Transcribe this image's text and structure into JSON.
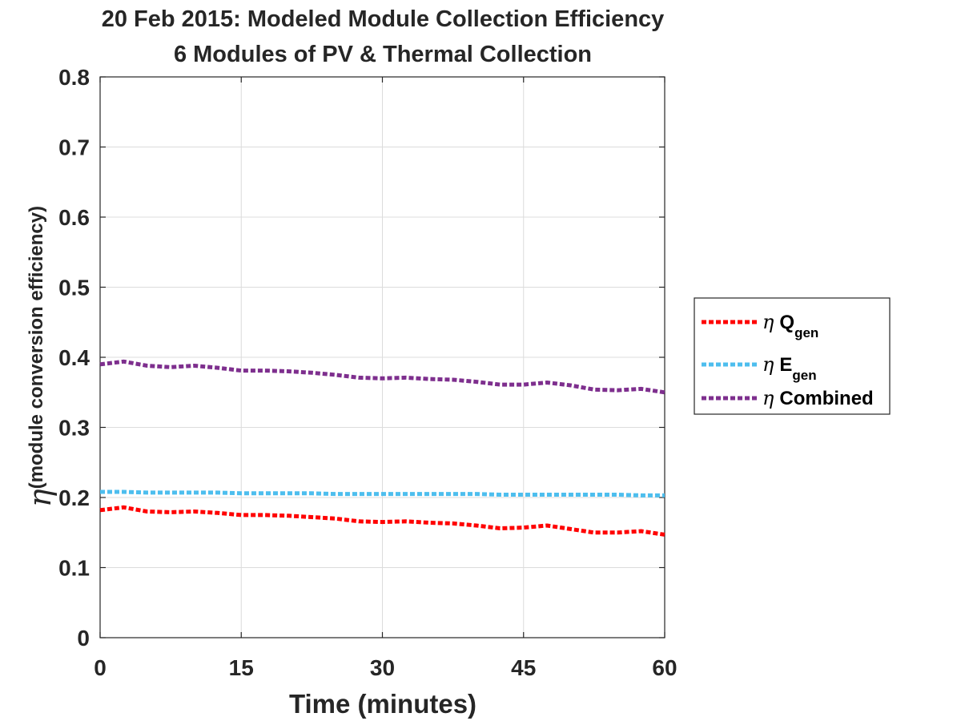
{
  "chart_data": {
    "type": "line",
    "title": [
      "20 Feb 2015: Modeled Module Collection Efficiency",
      "6 Modules of PV & Thermal Collection"
    ],
    "xlabel": "Time (minutes)",
    "ylabel": {
      "symbol": "η",
      "subscript": "(module conversion efficiency)"
    },
    "xlim": [
      0,
      60
    ],
    "ylim": [
      0,
      0.8
    ],
    "xticks": [
      0,
      15,
      30,
      45,
      60
    ],
    "xtick_labels": [
      "0",
      "15",
      "30",
      "45",
      "60"
    ],
    "yticks": [
      0,
      0.1,
      0.2,
      0.3,
      0.4,
      0.5,
      0.6,
      0.7,
      0.8
    ],
    "ytick_labels": [
      "0",
      "0.1",
      "0.2",
      "0.3",
      "0.4",
      "0.5",
      "0.6",
      "0.7",
      "0.8"
    ],
    "grid": true,
    "legend_position": "outside-right",
    "x": [
      0,
      2.5,
      5,
      7.5,
      10,
      12.5,
      15,
      17.5,
      20,
      22.5,
      25,
      27.5,
      30,
      32.5,
      35,
      37.5,
      40,
      42.5,
      45,
      47.5,
      50,
      52.5,
      55,
      57.5,
      60
    ],
    "series": [
      {
        "legend_symbol": "η",
        "legend_main": "Q",
        "legend_sub": "gen",
        "color": "#ff0000",
        "values": [
          0.182,
          0.186,
          0.18,
          0.179,
          0.18,
          0.178,
          0.175,
          0.175,
          0.174,
          0.172,
          0.17,
          0.166,
          0.165,
          0.166,
          0.164,
          0.163,
          0.16,
          0.156,
          0.157,
          0.16,
          0.155,
          0.15,
          0.15,
          0.152,
          0.147
        ]
      },
      {
        "legend_symbol": "η",
        "legend_main": "E",
        "legend_sub": "gen",
        "color": "#4dbeee",
        "values": [
          0.208,
          0.208,
          0.207,
          0.207,
          0.207,
          0.207,
          0.206,
          0.206,
          0.206,
          0.206,
          0.205,
          0.205,
          0.205,
          0.205,
          0.205,
          0.205,
          0.205,
          0.204,
          0.204,
          0.204,
          0.204,
          0.204,
          0.204,
          0.203,
          0.203
        ]
      },
      {
        "legend_symbol": "η",
        "legend_main": "Combined",
        "legend_sub": "",
        "color": "#7e2f8e",
        "values": [
          0.39,
          0.394,
          0.388,
          0.386,
          0.388,
          0.385,
          0.381,
          0.381,
          0.38,
          0.378,
          0.375,
          0.371,
          0.37,
          0.371,
          0.369,
          0.368,
          0.365,
          0.361,
          0.361,
          0.364,
          0.36,
          0.354,
          0.353,
          0.355,
          0.35
        ]
      }
    ]
  }
}
